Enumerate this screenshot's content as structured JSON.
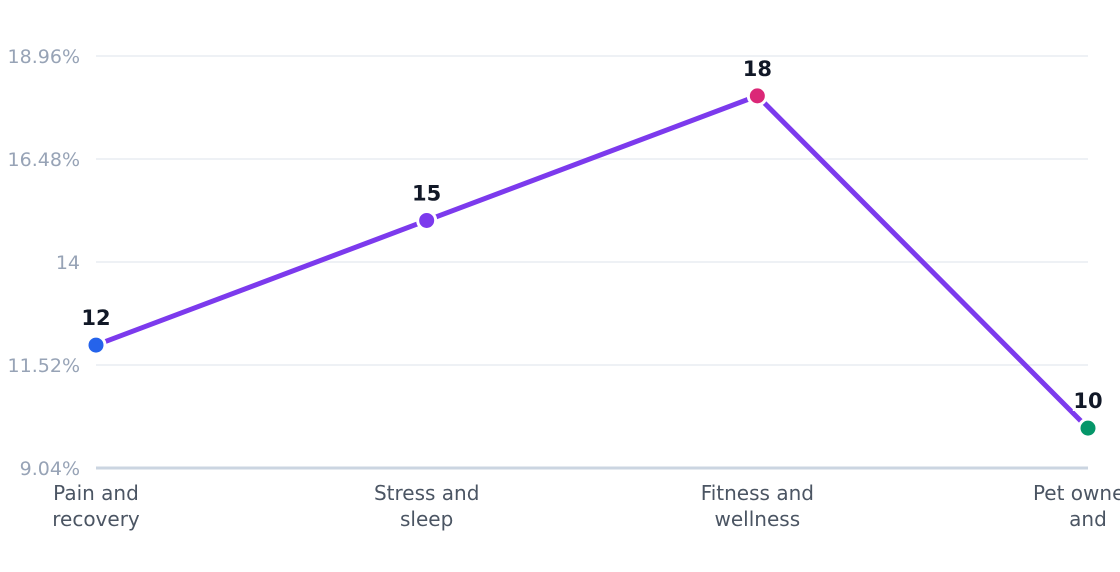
{
  "chart_data": {
    "type": "line",
    "categories": [
      [
        "Pain and",
        "recovery"
      ],
      [
        "Stress and",
        "sleep"
      ],
      [
        "Fitness and",
        "wellness"
      ],
      [
        "Pet owners",
        "and"
      ]
    ],
    "values": [
      12,
      15,
      18,
      10
    ],
    "data_labels": [
      "12",
      "15",
      "18",
      "10"
    ],
    "ylim": [
      9.04,
      18.96
    ],
    "y_ticks": [
      {
        "value": 9.04,
        "label": "9.04%"
      },
      {
        "value": 11.52,
        "label": "11.52%"
      },
      {
        "value": 14,
        "label": "14"
      },
      {
        "value": 16.48,
        "label": "16.48%"
      },
      {
        "value": 18.96,
        "label": "18.96%"
      }
    ],
    "grid": true,
    "title": "",
    "xlabel": "",
    "ylabel": "",
    "colors": {
      "line": "#7c3aed",
      "markers": [
        "#2563eb",
        "#7c3aed",
        "#db2777",
        "#059669"
      ],
      "grid": "#eef1f5",
      "baseline": "#cbd5e1"
    }
  }
}
